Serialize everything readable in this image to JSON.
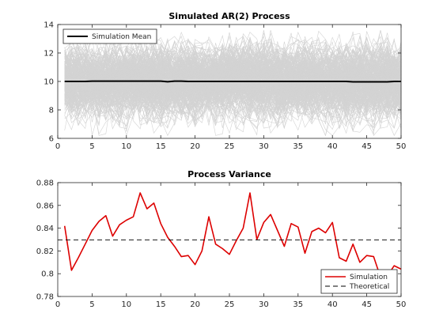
{
  "chart_data": [
    {
      "type": "line",
      "title": "Simulated AR(2) Process",
      "xlabel": "",
      "ylabel": "",
      "xlim": [
        0,
        50
      ],
      "ylim": [
        6,
        14
      ],
      "xticks": [
        0,
        5,
        10,
        15,
        20,
        25,
        30,
        35,
        40,
        45,
        50
      ],
      "yticks": [
        6,
        8,
        10,
        12,
        14
      ],
      "grid": false,
      "legend": {
        "placement": "top-left",
        "entries": [
          "Simulation Mean"
        ]
      },
      "simulation_band": {
        "color": "#d3d3d3",
        "typical_range": [
          7.5,
          12.5
        ],
        "extreme_range": [
          6.2,
          13.6
        ]
      },
      "series": [
        {
          "name": "Simulation Mean",
          "color": "#000000",
          "x": [
            1,
            2,
            3,
            4,
            5,
            6,
            7,
            8,
            9,
            10,
            11,
            12,
            13,
            14,
            15,
            16,
            17,
            18,
            19,
            20,
            21,
            22,
            23,
            24,
            25,
            26,
            27,
            28,
            29,
            30,
            31,
            32,
            33,
            34,
            35,
            36,
            37,
            38,
            39,
            40,
            41,
            42,
            43,
            44,
            45,
            46,
            47,
            48,
            49,
            50
          ],
          "values": [
            10.0,
            10.0,
            10.0,
            10.0,
            10.02,
            10.02,
            10.02,
            10.02,
            10.02,
            10.02,
            10.02,
            10.02,
            10.02,
            10.02,
            10.02,
            9.98,
            10.02,
            10.02,
            10.0,
            10.0,
            10.0,
            10.0,
            10.0,
            10.0,
            10.0,
            10.0,
            10.0,
            10.0,
            10.0,
            10.0,
            10.0,
            10.0,
            10.0,
            10.0,
            10.0,
            10.0,
            10.0,
            10.0,
            10.0,
            10.0,
            10.0,
            10.0,
            9.97,
            9.97,
            9.97,
            9.97,
            9.97,
            9.97,
            10.0,
            10.0
          ]
        }
      ]
    },
    {
      "type": "line",
      "title": "Process Variance",
      "xlabel": "",
      "ylabel": "",
      "xlim": [
        0,
        50
      ],
      "ylim": [
        0.78,
        0.88
      ],
      "xticks": [
        0,
        5,
        10,
        15,
        20,
        25,
        30,
        35,
        40,
        45,
        50
      ],
      "yticks": [
        0.78,
        0.8,
        0.82,
        0.84,
        0.86,
        0.88
      ],
      "ytick_labels": [
        "0.78",
        "0.8",
        "0.82",
        "0.84",
        "0.86",
        "0.88"
      ],
      "grid": false,
      "legend": {
        "placement": "bottom-right",
        "entries": [
          "Simulation",
          "Theoretical"
        ]
      },
      "series": [
        {
          "name": "Simulation",
          "color": "#dd0000",
          "x": [
            1,
            2,
            3,
            4,
            5,
            6,
            7,
            8,
            9,
            10,
            11,
            12,
            13,
            14,
            15,
            16,
            17,
            18,
            19,
            20,
            21,
            22,
            23,
            24,
            25,
            26,
            27,
            28,
            29,
            30,
            31,
            32,
            33,
            34,
            35,
            36,
            37,
            38,
            39,
            40,
            41,
            42,
            43,
            44,
            45,
            46,
            47,
            48,
            49,
            50
          ],
          "values": [
            0.842,
            0.803,
            0.814,
            0.826,
            0.838,
            0.846,
            0.851,
            0.833,
            0.843,
            0.847,
            0.85,
            0.871,
            0.857,
            0.862,
            0.844,
            0.832,
            0.824,
            0.815,
            0.816,
            0.808,
            0.82,
            0.85,
            0.826,
            0.822,
            0.817,
            0.829,
            0.84,
            0.871,
            0.83,
            0.845,
            0.852,
            0.838,
            0.824,
            0.844,
            0.841,
            0.818,
            0.837,
            0.84,
            0.836,
            0.845,
            0.814,
            0.811,
            0.826,
            0.81,
            0.816,
            0.815,
            0.797,
            0.798,
            0.807,
            0.804
          ]
        },
        {
          "name": "Theoretical",
          "color": "#000000",
          "style": "dashed",
          "x": [
            0,
            50
          ],
          "values": [
            0.8297,
            0.8297
          ]
        }
      ]
    }
  ]
}
